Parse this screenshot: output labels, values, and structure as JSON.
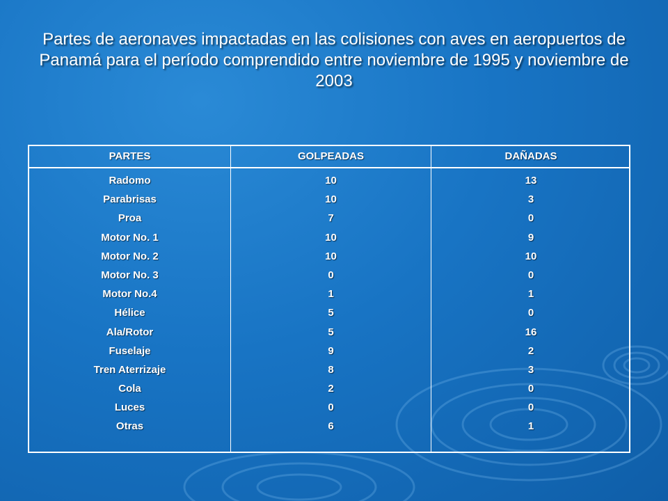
{
  "title": "Partes de aeronaves impactadas en las colisiones con aves en aeropuertos de Panamá para el período comprendido entre noviembre de 1995 y noviembre de 2003",
  "colors": {
    "background": "#1874c4",
    "text": "#ffffff",
    "border": "#ffffff"
  },
  "table": {
    "headers": [
      "PARTES",
      "GOLPEADAS",
      "DAÑADAS"
    ],
    "partes": [
      "Radomo",
      "Parabrisas",
      "Proa",
      "Motor No. 1",
      "Motor No. 2",
      "Motor No. 3",
      "Motor No.4",
      "Hélice",
      "Ala/Rotor",
      "Fuselaje",
      "Tren Aterrizaje",
      "Cola",
      "Luces",
      "Otras"
    ],
    "golpeadas": [
      "10",
      "10",
      "7",
      "10",
      "10",
      "0",
      "1",
      "5",
      "5",
      "9",
      "8",
      "2",
      "0",
      "6"
    ],
    "danadas": [
      "13",
      "3",
      "0",
      "9",
      "10",
      "0",
      "1",
      "0",
      "16",
      "2",
      "3",
      "0",
      "0",
      "1"
    ]
  }
}
